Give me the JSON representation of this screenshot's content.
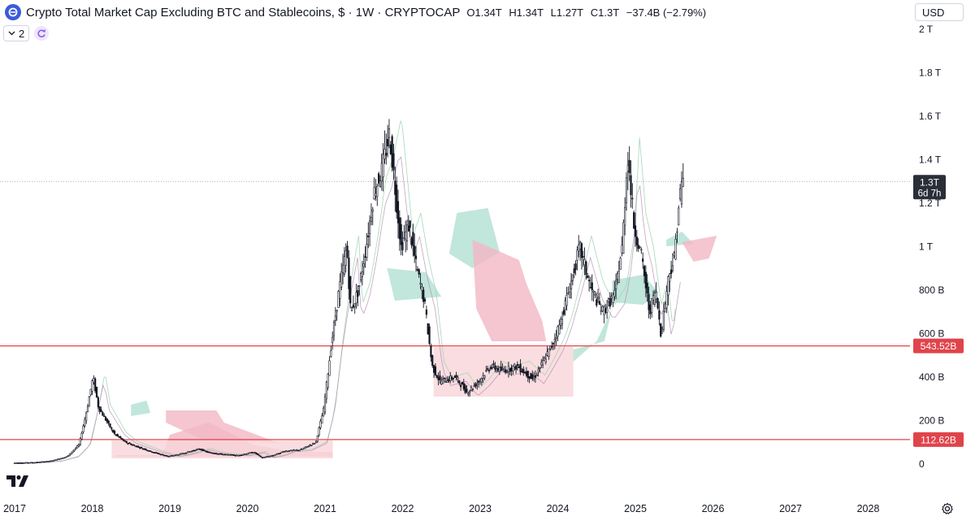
{
  "header": {
    "title": "Crypto Total Market Cap Excluding BTC and Stablecoins, $ · 1W · CRYPTOCAP",
    "open": "O1.34T",
    "high": "H1.34T",
    "low": "L1.27T",
    "close": "C1.3T",
    "change": "−37.4B (−2.79%)",
    "indicator_count": "2"
  },
  "currency": "USD",
  "price_tag": {
    "value": "1.3T",
    "countdown": "6d 7h"
  },
  "level_tags": [
    "543.52B",
    "112.62B"
  ],
  "colors": {
    "candle": "#131722",
    "level_line": "#e0444b",
    "cloud_bull": "#b2e0d2",
    "cloud_bear": "#f3b6c4",
    "range_box": "#f7d4d8",
    "price_tag_bg": "#2a2e39"
  },
  "icons": [
    "coin-logo-icon",
    "chevron-down-icon",
    "refresh-icon",
    "tradingview-logo-icon",
    "settings-gear-icon"
  ],
  "chart_data": {
    "type": "line",
    "title": "Crypto Total Market Cap Excluding BTC and Stablecoins, $ · 1W · CRYPTOCAP",
    "x_tick_labels": [
      "2017",
      "2018",
      "2019",
      "2020",
      "2021",
      "2022",
      "2023",
      "2024",
      "2025",
      "2026",
      "2027",
      "2028"
    ],
    "y_tick_labels": [
      "0",
      "200 B",
      "400 B",
      "600 B",
      "800 B",
      "1 T",
      "1.2 T",
      "1.4 T",
      "1.6 T",
      "1.8 T",
      "2 T"
    ],
    "ylim": [
      0,
      2000
    ],
    "xlim": [
      2017.0,
      2028.3
    ],
    "y_unit": "billions USD",
    "last_price": 1300,
    "horizontal_levels": [
      543.52,
      112.62
    ],
    "series": [
      {
        "x": [
          2017.0,
          2017.3,
          2017.5,
          2017.7,
          2017.85,
          2017.95,
          2018.03,
          2018.1,
          2018.2,
          2018.3,
          2018.45,
          2018.6,
          2018.8,
          2019.0,
          2019.2,
          2019.4,
          2019.5,
          2019.7,
          2019.9,
          2020.1,
          2020.2,
          2020.35,
          2020.5,
          2020.7,
          2020.9,
          2021.0,
          2021.1,
          2021.2,
          2021.3,
          2021.35,
          2021.45,
          2021.55,
          2021.65,
          2021.75,
          2021.85,
          2021.9,
          2022.0,
          2022.1,
          2022.2,
          2022.3,
          2022.4,
          2022.5,
          2022.7,
          2022.85,
          2023.0,
          2023.15,
          2023.3,
          2023.5,
          2023.7,
          2023.8,
          2023.95,
          2024.05,
          2024.2,
          2024.3,
          2024.45,
          2024.6,
          2024.75,
          2024.85,
          2024.92,
          2025.0,
          2025.1,
          2025.2,
          2025.28,
          2025.35,
          2025.45,
          2025.52,
          2025.58,
          2025.62
        ],
        "values": [
          5,
          8,
          15,
          35,
          90,
          250,
          400,
          260,
          200,
          140,
          100,
          80,
          55,
          35,
          50,
          70,
          55,
          45,
          40,
          55,
          30,
          40,
          60,
          65,
          100,
          250,
          550,
          800,
          1000,
          700,
          800,
          1000,
          1250,
          1350,
          1520,
          1350,
          1000,
          1100,
          900,
          750,
          450,
          380,
          400,
          330,
          380,
          450,
          430,
          450,
          390,
          450,
          550,
          650,
          850,
          1000,
          800,
          700,
          780,
          1000,
          1430,
          1100,
          950,
          700,
          800,
          600,
          870,
          950,
          1200,
          1300
        ]
      }
    ]
  }
}
